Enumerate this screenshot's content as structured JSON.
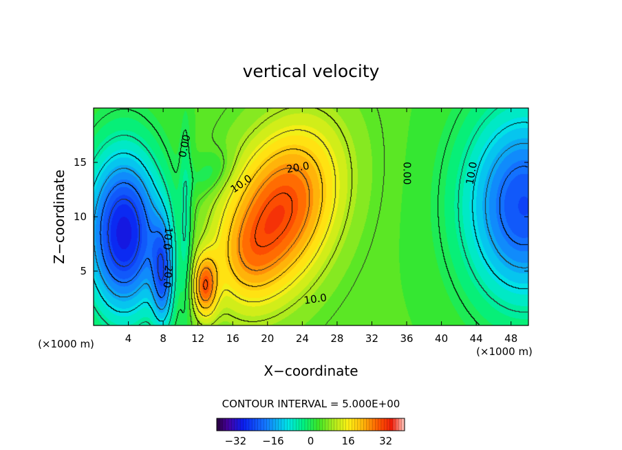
{
  "chart_data": {
    "type": "heatmap",
    "title": "vertical velocity",
    "xlabel": "X−coordinate",
    "ylabel": "Z−coordinate",
    "x_unit": "(×1000 m)",
    "y_unit": "(×1000 m)",
    "xlim": [
      0,
      50
    ],
    "ylim": [
      0,
      20
    ],
    "x_ticks": [
      4,
      8,
      12,
      16,
      20,
      24,
      28,
      32,
      36,
      40,
      44,
      48
    ],
    "x_tick_labels": [
      "4",
      "8",
      "12",
      "16",
      "20",
      "24",
      "28",
      "32",
      "36",
      "40",
      "44",
      "48"
    ],
    "y_ticks": [
      5,
      10,
      15
    ],
    "y_tick_labels": [
      "5",
      "10",
      "15"
    ],
    "contour_interval_text": "CONTOUR INTERVAL = 5.000E+00",
    "contour_interval": 5,
    "features": [
      {
        "kind": "max",
        "x": 21.5,
        "z": 10.5,
        "value": 31
      },
      {
        "kind": "max",
        "x": 12.8,
        "z": 3.5,
        "value": 27
      },
      {
        "kind": "min",
        "x": 3.3,
        "z": 8.5,
        "value": -30
      },
      {
        "kind": "min",
        "x": 8.0,
        "z": 4.5,
        "value": -28
      },
      {
        "kind": "min",
        "x": 49.5,
        "z": 11.0,
        "value": -24
      }
    ],
    "contour_labels": [
      {
        "text": "0.00",
        "x": 10.5,
        "z": 16.5,
        "angle": -78
      },
      {
        "text": "10.0",
        "x": 17.0,
        "z": 13.0,
        "angle": -35
      },
      {
        "text": "20.0",
        "x": 23.5,
        "z": 14.5,
        "angle": -10
      },
      {
        "text": "0.00",
        "x": 36.0,
        "z": 14.0,
        "angle": 90
      },
      {
        "text": "10.0",
        "x": 43.5,
        "z": 14.0,
        "angle": -80
      },
      {
        "text": "10.0",
        "x": 8.5,
        "z": 8.0,
        "angle": 95
      },
      {
        "text": "20.0",
        "x": 8.5,
        "z": 4.5,
        "angle": 95
      },
      {
        "text": "10.0",
        "x": 25.5,
        "z": 2.4,
        "angle": -8
      }
    ],
    "colorbar": {
      "min": -40,
      "max": 40,
      "ticks": [
        -32,
        -16,
        0,
        16,
        32
      ],
      "tick_labels": [
        "−32",
        "−16",
        "0",
        "16",
        "32"
      ]
    }
  }
}
